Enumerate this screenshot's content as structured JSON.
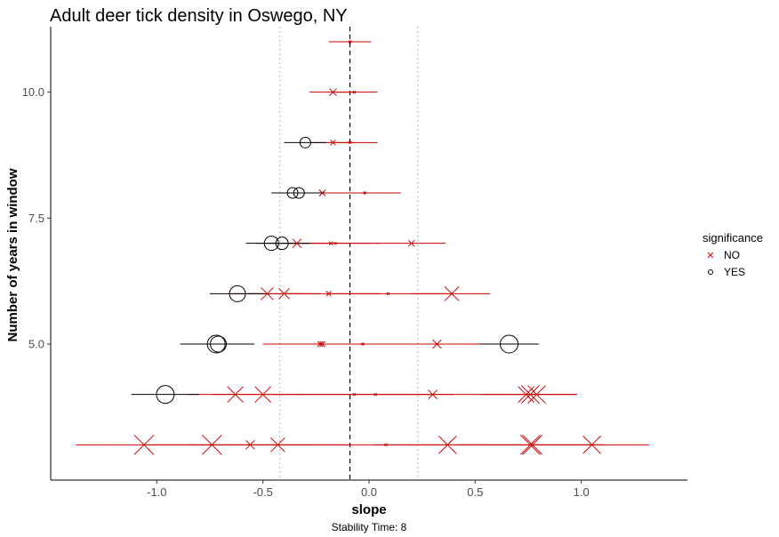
{
  "chart_data": {
    "type": "scatter",
    "title": "Adult deer tick density in Oswego, NY",
    "xlabel": "slope",
    "ylabel": "Number of years in window",
    "caption": "Stability Time: 8",
    "xlim": [
      -1.5,
      1.5
    ],
    "ylim": [
      2.3,
      11.3
    ],
    "x_ticks": [
      -1.0,
      -0.5,
      0.0,
      0.5,
      1.0
    ],
    "x_tick_labels": [
      "-1.0",
      "-0.5",
      "0.0",
      "0.5",
      "1.0"
    ],
    "y_ticks": [
      5.0,
      7.5,
      10.0
    ],
    "y_tick_labels": [
      "5.0",
      "7.5",
      "10.0"
    ],
    "grid": false,
    "reference_lines": {
      "dashed_vertical": -0.09,
      "dotted_vertical": [
        -0.42,
        0.23
      ]
    },
    "legend": {
      "title": "significance",
      "position": "right",
      "entries": [
        {
          "label": "NO",
          "shape": "x",
          "color": "#cc0000"
        },
        {
          "label": "YES",
          "shape": "circle",
          "color": "#000000"
        }
      ]
    },
    "colors": {
      "not_significant": "#cc0000",
      "significant": "#000000"
    },
    "points": [
      {
        "y": 11,
        "x": -0.09,
        "xmin": -0.19,
        "xmax": 0.01,
        "sig": "NO",
        "size": 1.5
      },
      {
        "y": 10,
        "x": -0.17,
        "xmin": -0.28,
        "xmax": -0.06,
        "sig": "NO",
        "size": 4
      },
      {
        "y": 10,
        "x": -0.07,
        "xmin": -0.17,
        "xmax": 0.04,
        "sig": "NO",
        "size": 1.5
      },
      {
        "y": 9,
        "x": -0.3,
        "xmin": -0.4,
        "xmax": -0.2,
        "sig": "YES",
        "size": 6
      },
      {
        "y": 9,
        "x": -0.17,
        "xmin": -0.27,
        "xmax": -0.07,
        "sig": "NO",
        "size": 3
      },
      {
        "y": 9,
        "x": -0.09,
        "xmin": -0.19,
        "xmax": 0.04,
        "sig": "NO",
        "size": 1.5
      },
      {
        "y": 8,
        "x": -0.36,
        "xmin": -0.46,
        "xmax": -0.24,
        "sig": "YES",
        "size": 6
      },
      {
        "y": 8,
        "x": -0.33,
        "xmin": -0.43,
        "xmax": -0.21,
        "sig": "YES",
        "size": 6
      },
      {
        "y": 8,
        "x": -0.22,
        "xmin": -0.33,
        "xmax": -0.1,
        "sig": "NO",
        "size": 3.5
      },
      {
        "y": 8,
        "x": -0.02,
        "xmin": -0.16,
        "xmax": 0.15,
        "sig": "NO",
        "size": 1.5
      },
      {
        "y": 7,
        "x": -0.46,
        "xmin": -0.58,
        "xmax": -0.33,
        "sig": "YES",
        "size": 8
      },
      {
        "y": 7,
        "x": -0.41,
        "xmin": -0.53,
        "xmax": -0.28,
        "sig": "YES",
        "size": 7
      },
      {
        "y": 7,
        "x": -0.34,
        "xmin": -0.47,
        "xmax": -0.2,
        "sig": "NO",
        "size": 5
      },
      {
        "y": 7,
        "x": -0.18,
        "xmin": -0.38,
        "xmax": 0.02,
        "sig": "NO",
        "size": 2
      },
      {
        "y": 7,
        "x": -0.16,
        "xmin": -0.36,
        "xmax": 0.05,
        "sig": "NO",
        "size": 1.5
      },
      {
        "y": 7,
        "x": 0.2,
        "xmin": 0.03,
        "xmax": 0.36,
        "sig": "NO",
        "size": 3.5
      },
      {
        "y": 6,
        "x": -0.62,
        "xmin": -0.75,
        "xmax": -0.49,
        "sig": "YES",
        "size": 9
      },
      {
        "y": 6,
        "x": -0.48,
        "xmin": -0.65,
        "xmax": -0.31,
        "sig": "NO",
        "size": 7
      },
      {
        "y": 6,
        "x": -0.4,
        "xmin": -0.57,
        "xmax": -0.23,
        "sig": "NO",
        "size": 6
      },
      {
        "y": 6,
        "x": -0.19,
        "xmin": -0.42,
        "xmax": 0.05,
        "sig": "NO",
        "size": 3
      },
      {
        "y": 6,
        "x": 0.09,
        "xmin": -0.2,
        "xmax": 0.38,
        "sig": "NO",
        "size": 1.5
      },
      {
        "y": 6,
        "x": 0.39,
        "xmin": 0.2,
        "xmax": 0.57,
        "sig": "NO",
        "size": 8
      },
      {
        "y": 5,
        "x": -0.72,
        "xmin": -0.89,
        "xmax": -0.55,
        "sig": "YES",
        "size": 10
      },
      {
        "y": 5,
        "x": -0.71,
        "xmin": -0.88,
        "xmax": -0.54,
        "sig": "YES",
        "size": 9
      },
      {
        "y": 5,
        "x": -0.23,
        "xmin": -0.5,
        "xmax": 0.05,
        "sig": "NO",
        "size": 3
      },
      {
        "y": 5,
        "x": -0.22,
        "xmin": -0.48,
        "xmax": 0.05,
        "sig": "NO",
        "size": 3
      },
      {
        "y": 5,
        "x": -0.03,
        "xmin": -0.35,
        "xmax": 0.3,
        "sig": "NO",
        "size": 1.5
      },
      {
        "y": 5,
        "x": 0.32,
        "xmin": 0.1,
        "xmax": 0.54,
        "sig": "NO",
        "size": 5
      },
      {
        "y": 5,
        "x": 0.66,
        "xmin": 0.52,
        "xmax": 0.8,
        "sig": "YES",
        "size": 10
      },
      {
        "y": 4,
        "x": -0.96,
        "xmin": -1.12,
        "xmax": -0.8,
        "sig": "YES",
        "size": 10
      },
      {
        "y": 4,
        "x": -0.63,
        "xmin": -0.85,
        "xmax": -0.4,
        "sig": "NO",
        "size": 9
      },
      {
        "y": 4,
        "x": -0.5,
        "xmin": -0.74,
        "xmax": -0.27,
        "sig": "NO",
        "size": 9
      },
      {
        "y": 4,
        "x": -0.07,
        "xmin": -0.45,
        "xmax": 0.3,
        "sig": "NO",
        "size": 1.5
      },
      {
        "y": 4,
        "x": 0.03,
        "xmin": -0.35,
        "xmax": 0.4,
        "sig": "NO",
        "size": 1.5
      },
      {
        "y": 4,
        "x": 0.3,
        "xmin": 0.03,
        "xmax": 0.58,
        "sig": "NO",
        "size": 5
      },
      {
        "y": 4,
        "x": 0.74,
        "xmin": 0.52,
        "xmax": 0.97,
        "sig": "NO",
        "size": 9
      },
      {
        "y": 4,
        "x": 0.76,
        "xmin": 0.54,
        "xmax": 0.98,
        "sig": "NO",
        "size": 10
      },
      {
        "y": 4,
        "x": 0.79,
        "xmin": 0.57,
        "xmax": 0.98,
        "sig": "NO",
        "size": 10
      },
      {
        "y": 3,
        "x": -1.06,
        "xmin": -1.38,
        "xmax": -0.73,
        "sig": "NO",
        "size": 11
      },
      {
        "y": 3,
        "x": -0.74,
        "xmin": -1.06,
        "xmax": -0.41,
        "sig": "NO",
        "size": 11
      },
      {
        "y": 3,
        "x": -0.56,
        "xmin": -0.85,
        "xmax": -0.26,
        "sig": "NO",
        "size": 5
      },
      {
        "y": 3,
        "x": -0.43,
        "xmin": -0.76,
        "xmax": -0.1,
        "sig": "NO",
        "size": 8
      },
      {
        "y": 3,
        "x": 0.08,
        "xmin": -0.4,
        "xmax": 0.55,
        "sig": "NO",
        "size": 1.5
      },
      {
        "y": 3,
        "x": 0.37,
        "xmin": 0.02,
        "xmax": 0.72,
        "sig": "NO",
        "size": 10
      },
      {
        "y": 3,
        "x": 0.76,
        "xmin": 0.42,
        "xmax": 1.1,
        "sig": "NO",
        "size": 11
      },
      {
        "y": 3,
        "x": 0.77,
        "xmin": 0.43,
        "xmax": 1.11,
        "sig": "NO",
        "size": 11
      },
      {
        "y": 3,
        "x": 1.05,
        "xmin": 0.78,
        "xmax": 1.32,
        "sig": "NO",
        "size": 10
      }
    ]
  }
}
